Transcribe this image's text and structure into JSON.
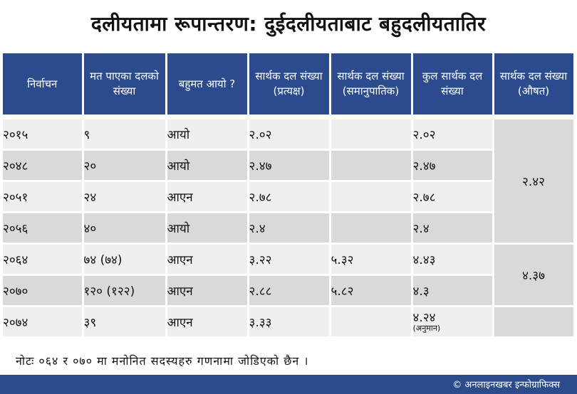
{
  "title": "दलीयतामा रूपान्तरण:  दुईदलीयताबाट बहुदलीयतातिर",
  "table": {
    "headers": [
      "निर्वाचन",
      "मत पाएका दलको संख्या",
      "बहुमत आयो ?",
      "सार्थक दल संख्या (प्रत्यक्ष)",
      "सार्थक दल संख्या (समानुपातिक)",
      "कुल सार्थक दल संख्या",
      "सार्थक दल संख्या (औषत)"
    ],
    "rows": [
      {
        "year": "२०१५",
        "parties": "९",
        "majority": "आयो",
        "direct": "२.०२",
        "proportional": "",
        "total": "२.०२",
        "total_note": ""
      },
      {
        "year": "२०४८",
        "parties": "२०",
        "majority": "आयो",
        "direct": "२.४७",
        "proportional": "",
        "total": "२.४७",
        "total_note": ""
      },
      {
        "year": "२०५१",
        "parties": "२४",
        "majority": "आएन",
        "direct": "२.७८",
        "proportional": "",
        "total": "२.७८",
        "total_note": ""
      },
      {
        "year": "२०५६",
        "parties": "४०",
        "majority": "आयो",
        "direct": "२.४",
        "proportional": "",
        "total": "२.४",
        "total_note": ""
      },
      {
        "year": "२०६४",
        "parties": "७४ (७४)",
        "majority": "आएन",
        "direct": "३.२२",
        "proportional": "५.३२",
        "total": "४.४३",
        "total_note": ""
      },
      {
        "year": "२०७०",
        "parties": "१२० (१२२)",
        "majority": "आएन",
        "direct": "२.८८",
        "proportional": "५.८२",
        "total": "४.३",
        "total_note": ""
      },
      {
        "year": "२०७४",
        "parties": "३९",
        "majority": "आएन",
        "direct": "३.३३",
        "proportional": "",
        "total": "४.२४",
        "total_note": "(अनुमान)"
      }
    ],
    "averages": [
      "२.४२",
      "४.३७"
    ]
  },
  "note": "नोटः ०६४ र ०७० मा मनोनित सदस्यहरु गणनामा जोडिएको छैन ।",
  "credit": "© अनलाइनखबर इन्फोग्राफिक्स"
}
